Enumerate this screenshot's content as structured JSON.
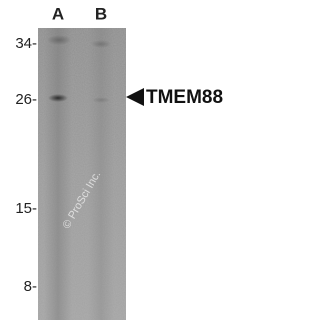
{
  "lanes": [
    "A",
    "B"
  ],
  "markers": [
    "34-",
    "26-",
    "15-",
    "8-"
  ],
  "target_label": "TMEM88",
  "watermark": "© ProSci Inc."
}
